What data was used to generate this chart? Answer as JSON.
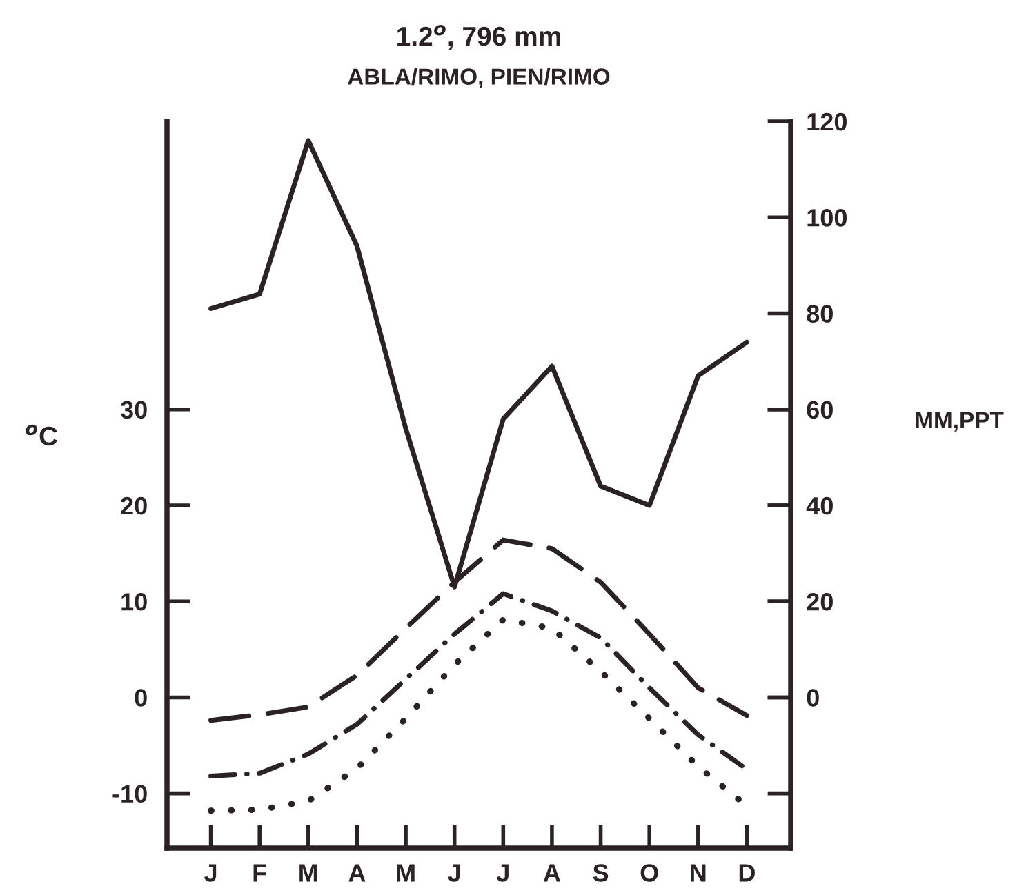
{
  "chart_data": {
    "type": "line",
    "title": "1.2$^{o}$, 796 mm",
    "subtitle": "ABLA/RIMO, PIEN/RIMO",
    "ylabel": "$^{o}$C",
    "y2label": "MM,PPT",
    "categories": [
      "J",
      "F",
      "M",
      "A",
      "M",
      "J",
      "J",
      "A",
      "S",
      "O",
      "N",
      "D"
    ],
    "ylim": [
      -15.7,
      60
    ],
    "yticks": [
      -10,
      0,
      10,
      20,
      30
    ],
    "y2lim": [
      -31.4,
      120
    ],
    "y2ticks": [
      0,
      20,
      40,
      60,
      80,
      100,
      120
    ],
    "series": [
      {
        "color": "#2a2224",
        "axis": "y2",
        "line_style": "solid",
        "values": [
          81,
          84,
          116,
          94,
          56,
          23,
          58,
          69,
          44,
          40,
          67,
          74
        ]
      },
      {
        "color": "#2a2224",
        "axis": "y",
        "line_style": "dashed",
        "values": [
          -2.4,
          -1.8,
          -1.0,
          2.3,
          7.2,
          12.0,
          16.4,
          15.5,
          12.0,
          6.6,
          1.0,
          -1.9
        ]
      },
      {
        "color": "#2a2224",
        "axis": "y",
        "line_style": "dashdot",
        "values": [
          -8.2,
          -7.9,
          -5.9,
          -2.8,
          1.9,
          6.6,
          10.8,
          9.0,
          6.2,
          1.0,
          -3.9,
          -7.5
        ]
      },
      {
        "color": "#2a2224",
        "axis": "y",
        "line_style": "dotted",
        "values": [
          -11.8,
          -11.7,
          -10.8,
          -7.4,
          -2.2,
          3.4,
          8.1,
          7.2,
          2.7,
          -2.2,
          -7.2,
          -11.3
        ]
      }
    ]
  }
}
